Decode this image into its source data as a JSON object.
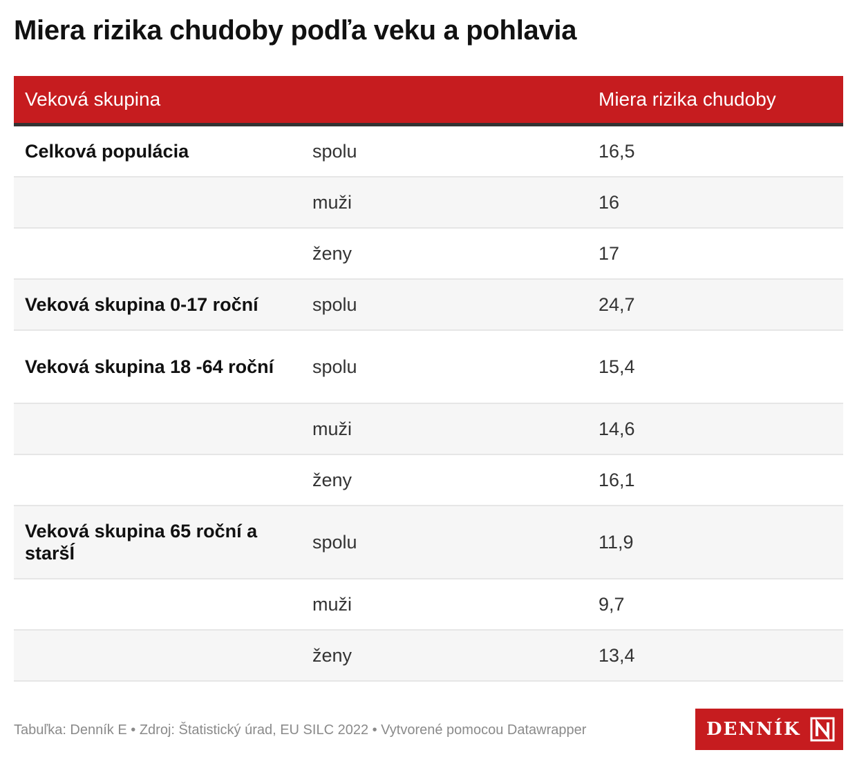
{
  "title": "Miera rizika chudoby podľa veku a pohlavia",
  "chart_data": {
    "type": "table",
    "columns": [
      "Veková skupina",
      "",
      "Miera rizika chudoby"
    ],
    "rows": [
      {
        "group": "Celková populácia",
        "sex": "spolu",
        "value": "16,5"
      },
      {
        "group": "",
        "sex": "muži",
        "value": "16"
      },
      {
        "group": "",
        "sex": "ženy",
        "value": "17"
      },
      {
        "group": "Veková skupina 0-17 roční",
        "sex": "spolu",
        "value": "24,7"
      },
      {
        "group": "Veková skupina 18 -64 roční",
        "sex": "spolu",
        "value": "15,4"
      },
      {
        "group": "",
        "sex": "muži",
        "value": "14,6"
      },
      {
        "group": "",
        "sex": "ženy",
        "value": "16,1"
      },
      {
        "group": "Veková skupina 65 roční a staršÍ",
        "sex": "spolu",
        "value": "11,9"
      },
      {
        "group": "",
        "sex": "muži",
        "value": "9,7"
      },
      {
        "group": "",
        "sex": "ženy",
        "value": "13,4"
      }
    ]
  },
  "footer": "Tabuľka: Denník E • Zdroj: Štatistický úrad, EU SILC 2022 • Vytvorené pomocou Datawrapper",
  "logo": {
    "text": "DENNÍK"
  },
  "colors": {
    "header": "#c61c1f",
    "shade": "#f6f6f6"
  }
}
